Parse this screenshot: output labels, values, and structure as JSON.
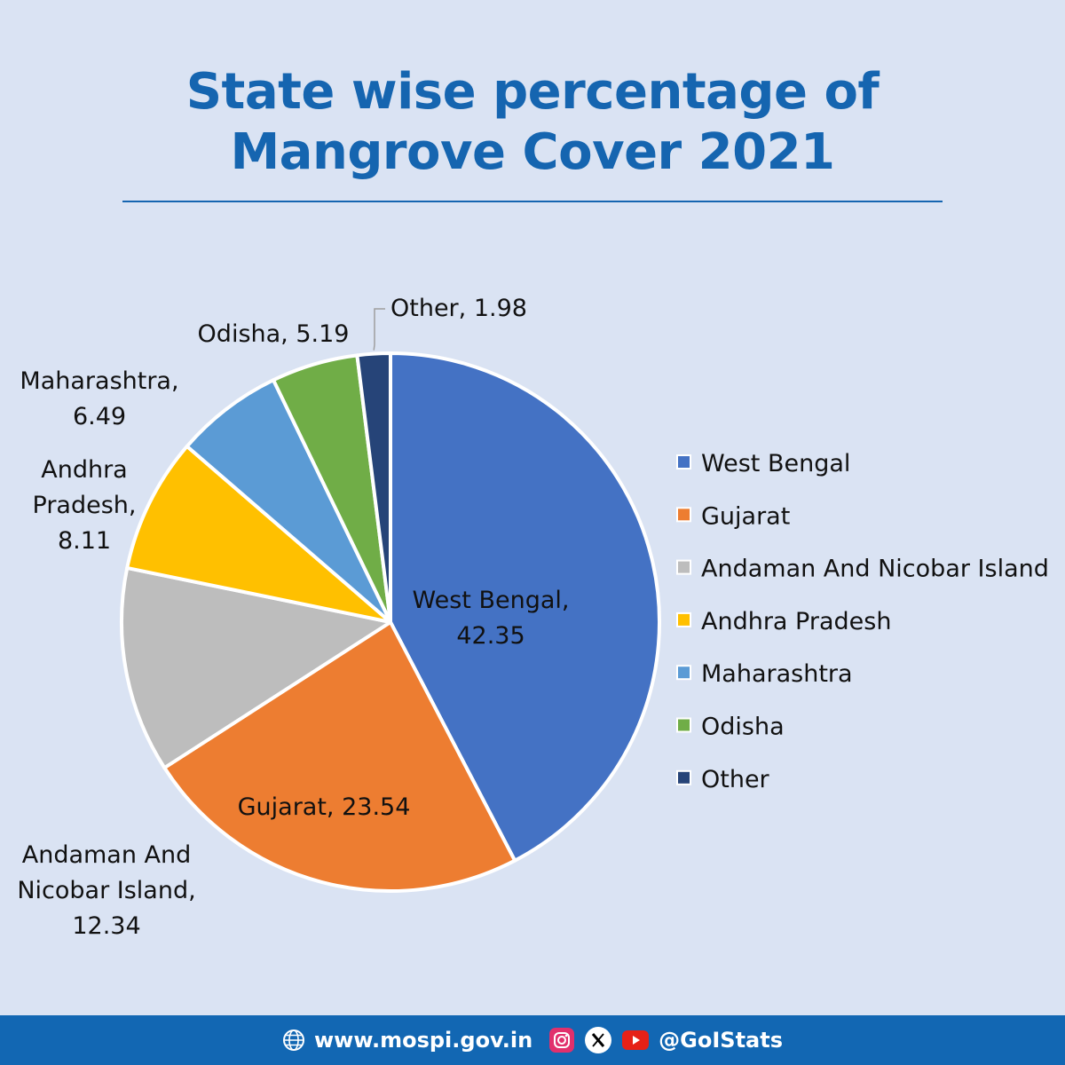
{
  "title": {
    "line1": "State wise percentage of",
    "line2": "Mangrove Cover 2021"
  },
  "chart_data": {
    "type": "pie",
    "title": "State wise percentage of Mangrove Cover 2021",
    "slices": [
      {
        "name": "West Bengal",
        "value": 42.35,
        "color": "#4472c4",
        "label_lines": [
          "West Bengal,",
          "42.35"
        ]
      },
      {
        "name": "Gujarat",
        "value": 23.54,
        "color": "#ed7d31",
        "label_lines": [
          "Gujarat, 23.54"
        ]
      },
      {
        "name": "Andaman And Nicobar Island",
        "value": 12.34,
        "color": "#bdbdbd",
        "label_lines": [
          "Andaman And",
          "Nicobar Island,",
          "12.34"
        ]
      },
      {
        "name": "Andhra Pradesh",
        "value": 8.11,
        "color": "#ffc000",
        "label_lines": [
          "Andhra",
          "Pradesh,",
          "8.11"
        ]
      },
      {
        "name": "Maharashtra",
        "value": 6.49,
        "color": "#5b9bd5",
        "label_lines": [
          "Maharashtra,",
          "6.49"
        ]
      },
      {
        "name": "Odisha",
        "value": 5.19,
        "color": "#70ad47",
        "label_lines": [
          "Odisha, 5.19"
        ]
      },
      {
        "name": "Other",
        "value": 1.98,
        "color": "#264478",
        "label_lines": [
          "Other, 1.98"
        ]
      }
    ],
    "legend": {
      "position": "right",
      "entries": [
        "West Bengal",
        "Gujarat",
        "Andaman And Nicobar Island",
        "Andhra Pradesh",
        "Maharashtra",
        "Odisha",
        "Other"
      ]
    }
  },
  "footer": {
    "website": "www.mospi.gov.in",
    "handle": "@GoIStats",
    "icons": [
      "globe-icon",
      "instagram-icon",
      "x-icon",
      "youtube-icon"
    ]
  }
}
